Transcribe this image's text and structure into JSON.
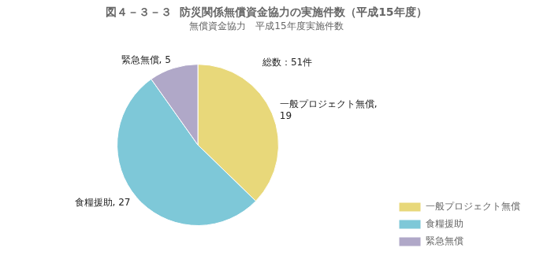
{
  "chart_data": {
    "type": "pie",
    "title_label": "図４－３－３",
    "title": "防災関係無償資金協力の実施件数（平成15年度）",
    "subtitle": "無償資金協力　平成15年度実施件数",
    "categories": [
      "一般プロジェクト無償",
      "食糧援助",
      "緊急無償"
    ],
    "values": [
      19,
      27,
      5
    ],
    "colors": [
      "#e8d87a",
      "#7ec8d8",
      "#b0a8c8"
    ],
    "data_labels": true,
    "value_labels": [
      "一般プロジェクト無償,\n19",
      "食糧援助, 27",
      "緊急無償, 5"
    ],
    "annotations": [
      "総数：51件"
    ],
    "legend": "lower right"
  }
}
